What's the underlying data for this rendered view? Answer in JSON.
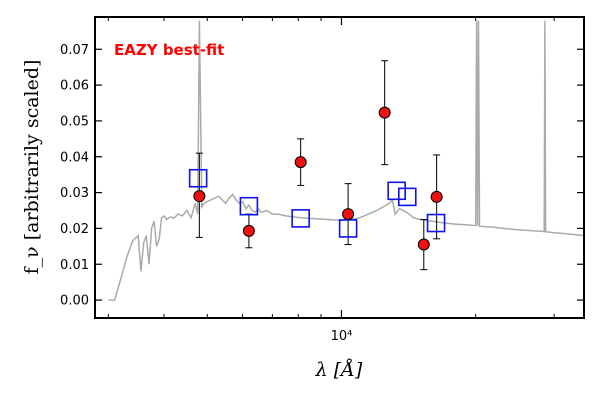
{
  "chart_data": {
    "type": "scatter",
    "annotation": "EAZY best-fit",
    "xlabel": "λ [Å]",
    "ylabel": "f_ν [arbitrarily scaled]",
    "x_scale": "log",
    "xlim": [
      2800,
      35000
    ],
    "ylim": [
      -0.005,
      0.079
    ],
    "y_ticks": [
      0.0,
      0.01,
      0.02,
      0.03,
      0.04,
      0.05,
      0.06,
      0.07
    ],
    "y_tick_labels": [
      "0.00",
      "0.01",
      "0.02",
      "0.03",
      "0.04",
      "0.05",
      "0.06",
      "0.07"
    ],
    "x_major_ticks": [
      10000
    ],
    "x_major_tick_labels": [
      "10⁴"
    ],
    "x_minor_ticks": [
      3000,
      4000,
      5000,
      6000,
      7000,
      8000,
      9000,
      20000,
      30000
    ],
    "grid": false,
    "colors": {
      "model": "#aaaaaa",
      "observed_fill": "#ee1111",
      "model_flux_box": "#1111ee",
      "annotation": "#ff0000"
    },
    "series": [
      {
        "kind": "errorbar",
        "points": [
          {
            "x": 4800,
            "y": 0.029,
            "err_low": 0.0115,
            "err_high": 0.012
          },
          {
            "x": 6200,
            "y": 0.0193,
            "err_low": 0.0047,
            "err_high": 0.0047
          },
          {
            "x": 8100,
            "y": 0.0385,
            "err_low": 0.0065,
            "err_high": 0.0065
          },
          {
            "x": 10350,
            "y": 0.024,
            "err_low": 0.0085,
            "err_high": 0.0085
          },
          {
            "x": 12500,
            "y": 0.0523,
            "err_low": 0.0145,
            "err_high": 0.0145
          },
          {
            "x": 16350,
            "y": 0.0288,
            "err_low": 0.0117,
            "err_high": 0.0117
          },
          {
            "x": 15300,
            "y": 0.0155,
            "err_low": 0.007,
            "err_high": 0.007
          }
        ]
      },
      {
        "kind": "model_flux",
        "points": [
          {
            "x": 4770,
            "y": 0.034
          },
          {
            "x": 6200,
            "y": 0.0262
          },
          {
            "x": 8100,
            "y": 0.0228
          },
          {
            "x": 10350,
            "y": 0.02
          },
          {
            "x": 13300,
            "y": 0.0305
          },
          {
            "x": 14050,
            "y": 0.0288
          },
          {
            "x": 16300,
            "y": 0.0215
          }
        ]
      },
      {
        "kind": "sed_line",
        "x": [
          3000,
          3100,
          3200,
          3300,
          3400,
          3500,
          3550,
          3600,
          3650,
          3700,
          3750,
          3800,
          3850,
          3900,
          3950,
          4000,
          4050,
          4100,
          4150,
          4200,
          4300,
          4400,
          4500,
          4600,
          4700,
          4760,
          4800,
          4860,
          4920,
          5000,
          5100,
          5200,
          5300,
          5400,
          5500,
          5600,
          5700,
          5800,
          5900,
          6000,
          6100,
          6200,
          6300,
          6400,
          6500,
          6600,
          6800,
          7000,
          7200,
          7500,
          7800,
          8100,
          8500,
          9000,
          9500,
          10000,
          10500,
          11000,
          11500,
          12000,
          12400,
          12800,
          13000,
          13200,
          13500,
          14000,
          14500,
          15000,
          15500,
          16000,
          17000,
          18000,
          19000,
          20000,
          20100,
          20200,
          20300,
          20400,
          21000,
          22000,
          23000,
          24000,
          25000,
          26000,
          27000,
          28000,
          28500,
          28600,
          28700,
          29000,
          30000,
          32000,
          35000
        ],
        "y": [
          0.0,
          0.0,
          0.006,
          0.012,
          0.0165,
          0.018,
          0.008,
          0.016,
          0.018,
          0.01,
          0.02,
          0.022,
          0.015,
          0.017,
          0.023,
          0.0235,
          0.0225,
          0.023,
          0.0232,
          0.0228,
          0.024,
          0.0235,
          0.025,
          0.023,
          0.027,
          0.024,
          0.078,
          0.026,
          0.027,
          0.0275,
          0.028,
          0.0285,
          0.029,
          0.028,
          0.027,
          0.0285,
          0.0295,
          0.028,
          0.027,
          0.0275,
          0.0255,
          0.0265,
          0.025,
          0.0245,
          0.0255,
          0.0245,
          0.025,
          0.024,
          0.024,
          0.0235,
          0.0232,
          0.023,
          0.0228,
          0.0226,
          0.0224,
          0.0222,
          0.0225,
          0.023,
          0.024,
          0.025,
          0.026,
          0.027,
          0.028,
          0.024,
          0.0255,
          0.0245,
          0.023,
          0.0225,
          0.0222,
          0.022,
          0.0215,
          0.0212,
          0.021,
          0.0208,
          0.078,
          0.0208,
          0.078,
          0.0206,
          0.0205,
          0.0203,
          0.02,
          0.0198,
          0.0196,
          0.0195,
          0.0193,
          0.0192,
          0.0191,
          0.078,
          0.0191,
          0.019,
          0.0188,
          0.0185,
          0.018
        ]
      }
    ]
  }
}
